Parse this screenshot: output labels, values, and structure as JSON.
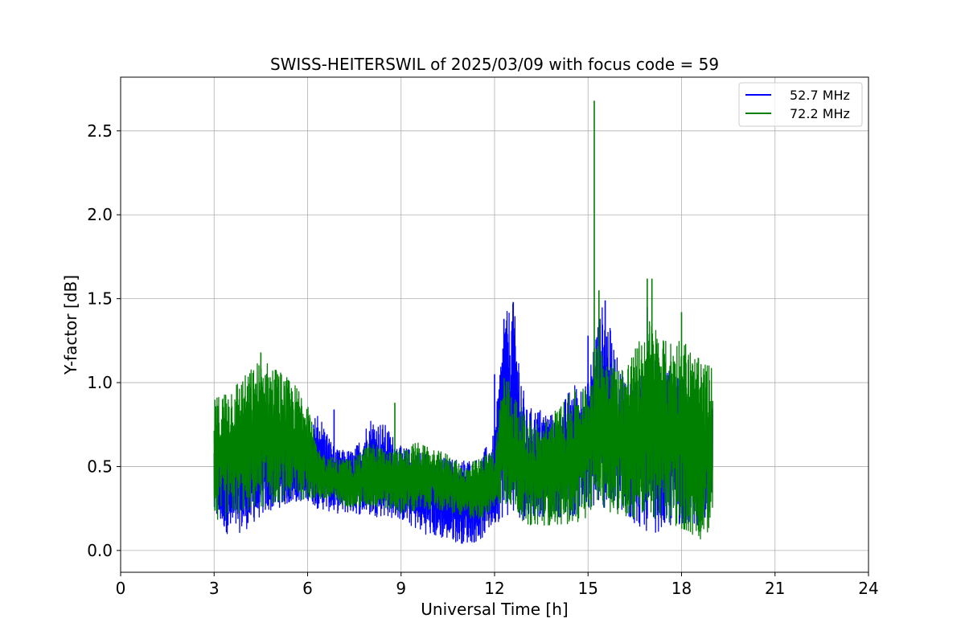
{
  "chart_data": {
    "type": "line",
    "title": "SWISS-HEITERSWIL of 2025/03/09 with focus code = 59",
    "xlabel": "Universal Time [h]",
    "ylabel": "Y-factor [dB]",
    "xlim": [
      0,
      24
    ],
    "ylim": [
      -0.13,
      2.82
    ],
    "xticks": [
      0,
      3,
      6,
      9,
      12,
      15,
      18,
      21,
      24
    ],
    "yticks": [
      0.0,
      0.5,
      1.0,
      1.5,
      2.0,
      2.5
    ],
    "xtick_labels": [
      "0",
      "3",
      "6",
      "9",
      "12",
      "15",
      "18",
      "21",
      "24"
    ],
    "ytick_labels": [
      "0.0",
      "0.5",
      "1.0",
      "1.5",
      "2.0",
      "2.5"
    ],
    "grid": true,
    "legend_position": "top-right",
    "series": [
      {
        "name": "52.7 MHz",
        "color": "#0000ff",
        "envelope_x": [
          3.0,
          3.5,
          4.0,
          4.5,
          5.0,
          5.5,
          6.0,
          6.3,
          6.9,
          7.5,
          8.0,
          8.5,
          9.0,
          9.5,
          10.0,
          10.5,
          11.0,
          11.5,
          12.0,
          12.3,
          12.6,
          13.0,
          13.5,
          14.0,
          14.5,
          15.0,
          15.2,
          15.5,
          16.0,
          16.5,
          17.0,
          17.5,
          18.0,
          18.5,
          19.0
        ],
        "envelope_low": [
          0.2,
          0.08,
          0.12,
          0.2,
          0.25,
          0.28,
          0.3,
          0.25,
          0.22,
          0.22,
          0.2,
          0.2,
          0.18,
          0.12,
          0.08,
          0.06,
          0.04,
          0.05,
          0.15,
          0.2,
          0.2,
          0.18,
          0.2,
          0.2,
          0.2,
          0.22,
          0.25,
          0.25,
          0.2,
          0.15,
          0.1,
          0.12,
          0.15,
          0.15,
          0.2
        ],
        "envelope_high": [
          0.65,
          0.7,
          0.72,
          0.75,
          0.75,
          0.7,
          0.6,
          0.85,
          0.6,
          0.6,
          0.8,
          0.75,
          0.62,
          0.6,
          0.58,
          0.55,
          0.55,
          0.55,
          0.7,
          1.4,
          1.48,
          0.85,
          0.85,
          0.8,
          1.0,
          1.0,
          1.3,
          1.49,
          1.1,
          1.0,
          1.15,
          1.1,
          1.05,
          0.7,
          0.9
        ],
        "peaks": [
          [
            6.85,
            0.84
          ],
          [
            12.0,
            1.05
          ],
          [
            12.3,
            1.38
          ],
          [
            12.6,
            1.48
          ],
          [
            15.0,
            1.28
          ],
          [
            15.55,
            1.49
          ],
          [
            16.9,
            1.45
          ]
        ]
      },
      {
        "name": "72.2 MHz",
        "color": "#008000",
        "envelope_x": [
          3.0,
          3.5,
          4.0,
          4.5,
          5.0,
          5.5,
          6.0,
          6.3,
          6.9,
          7.5,
          8.0,
          8.5,
          9.0,
          9.5,
          10.0,
          10.5,
          11.0,
          11.5,
          12.0,
          12.3,
          12.6,
          13.0,
          13.5,
          14.0,
          14.5,
          15.0,
          15.2,
          15.5,
          16.0,
          16.5,
          17.0,
          17.5,
          18.0,
          18.5,
          19.0
        ],
        "envelope_low": [
          0.15,
          0.2,
          0.22,
          0.25,
          0.28,
          0.3,
          0.3,
          0.3,
          0.28,
          0.25,
          0.25,
          0.25,
          0.22,
          0.22,
          0.25,
          0.22,
          0.2,
          0.18,
          0.25,
          0.28,
          0.25,
          0.15,
          0.15,
          0.15,
          0.15,
          0.2,
          0.3,
          0.25,
          0.2,
          0.18,
          0.2,
          0.15,
          0.12,
          0.05,
          0.12
        ],
        "envelope_high": [
          0.9,
          1.0,
          1.05,
          1.15,
          1.1,
          1.0,
          0.95,
          0.6,
          0.55,
          0.55,
          0.65,
          0.6,
          0.6,
          0.65,
          0.6,
          0.58,
          0.5,
          0.55,
          0.6,
          1.1,
          0.95,
          0.8,
          0.75,
          0.85,
          0.95,
          1.0,
          1.2,
          1.25,
          1.1,
          1.2,
          1.4,
          1.25,
          1.3,
          1.15,
          1.1
        ],
        "peaks": [
          [
            4.5,
            1.18
          ],
          [
            8.8,
            0.88
          ],
          [
            15.2,
            2.68
          ],
          [
            15.35,
            1.55
          ],
          [
            16.9,
            1.62
          ],
          [
            17.05,
            1.62
          ],
          [
            18.0,
            1.42
          ]
        ]
      }
    ]
  }
}
